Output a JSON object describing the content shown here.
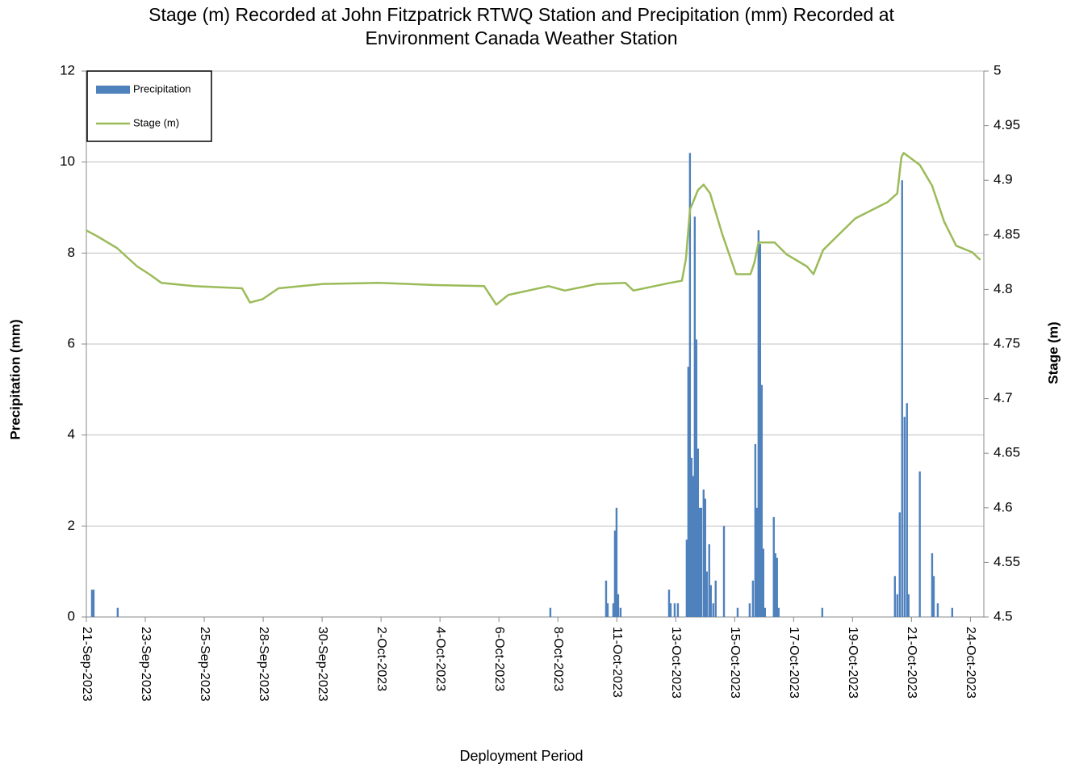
{
  "chart_data": {
    "type": "bar",
    "title": "Stage (m) Recorded at John Fitzpatrick RTWQ Station and Precipitation (mm) Recorded at Environment Canada Weather Station",
    "x_label": "Deployment Period",
    "y_label": "Precipitation (mm)",
    "y2_label": "Stage (m)",
    "xlim": [
      0,
      33.5
    ],
    "xticks": [
      {
        "value": 0,
        "label": "21-Sep-2023"
      },
      {
        "value": 2.2,
        "label": "23-Sep-2023"
      },
      {
        "value": 4.4,
        "label": "25-Sep-2023"
      },
      {
        "value": 6.6,
        "label": "28-Sep-2023"
      },
      {
        "value": 8.8,
        "label": "30-Sep-2023"
      },
      {
        "value": 11,
        "label": "2-Oct-2023"
      },
      {
        "value": 13.2,
        "label": "4-Oct-2023"
      },
      {
        "value": 15.4,
        "label": "6-Oct-2023"
      },
      {
        "value": 17.6,
        "label": "8-Oct-2023"
      },
      {
        "value": 19.8,
        "label": "11-Oct-2023"
      },
      {
        "value": 22,
        "label": "13-Oct-2023"
      },
      {
        "value": 24.2,
        "label": "15-Oct-2023"
      },
      {
        "value": 26.4,
        "label": "17-Oct-2023"
      },
      {
        "value": 28.6,
        "label": "19-Oct-2023"
      },
      {
        "value": 30.8,
        "label": "21-Oct-2023"
      },
      {
        "value": 33,
        "label": "24-Oct-2023"
      }
    ],
    "ylim": [
      0,
      12
    ],
    "yticks": [
      0,
      2,
      4,
      6,
      8,
      10,
      12
    ],
    "y2lim": [
      4.5,
      5
    ],
    "y2ticks": [
      4.5,
      4.55,
      4.6,
      4.65,
      4.7,
      4.75,
      4.8,
      4.85,
      4.9,
      4.95,
      5
    ],
    "grid": true,
    "legend": "upper left",
    "series": [
      {
        "name": "Precipitation",
        "type": "bar",
        "color": "#4f81bd",
        "x": [
          0.21,
          0.27,
          1.17,
          17.32,
          19.4,
          19.46,
          19.67,
          19.73,
          19.79,
          19.85,
          19.94,
          21.75,
          21.81,
          21.96,
          22.08,
          22.41,
          22.47,
          22.53,
          22.59,
          22.65,
          22.71,
          22.77,
          22.83,
          22.89,
          22.95,
          23.04,
          23.1,
          23.16,
          23.25,
          23.31,
          23.4,
          23.49,
          23.8,
          24.31,
          24.76,
          24.88,
          24.97,
          25.03,
          25.09,
          25.15,
          25.21,
          25.27,
          25.33,
          25.66,
          25.72,
          25.78,
          25.84,
          27.47,
          30.18,
          30.27,
          30.36,
          30.45,
          30.54,
          30.63,
          30.69,
          31.11,
          31.57,
          31.63,
          31.78,
          32.32
        ],
        "values": [
          0.6,
          0.6,
          0.2,
          0.2,
          0.8,
          0.3,
          0.3,
          1.9,
          2.4,
          0.5,
          0.2,
          0.6,
          0.3,
          0.3,
          0.3,
          1.7,
          5.5,
          10.2,
          3.5,
          3.1,
          8.8,
          6.1,
          3.7,
          2.4,
          2.4,
          2.8,
          2.6,
          1.0,
          1.6,
          0.7,
          0.3,
          0.8,
          2.0,
          0.2,
          0.3,
          0.8,
          3.8,
          2.4,
          8.5,
          8.2,
          5.1,
          1.5,
          0.2,
          2.2,
          1.4,
          1.3,
          0.2,
          0.2,
          0.9,
          0.5,
          2.3,
          9.6,
          4.4,
          4.7,
          0.5,
          3.2,
          1.4,
          0.9,
          0.3,
          0.2
        ]
      },
      {
        "name": "Stage (m)",
        "type": "line",
        "axis": "y2",
        "color": "#9bbb59",
        "x": [
          0,
          0.39,
          1.14,
          1.9,
          2.35,
          2.8,
          4.01,
          5.81,
          6.11,
          6.57,
          7.17,
          8.83,
          10.93,
          13.04,
          14.85,
          15.3,
          15.75,
          17.26,
          17.86,
          19.07,
          20.12,
          20.42,
          21.78,
          22.23,
          22.38,
          22.53,
          22.83,
          23.04,
          23.28,
          23.73,
          24.25,
          24.79,
          24.94,
          25.09,
          25.69,
          26.14,
          26.9,
          27.14,
          27.5,
          27.95,
          28.7,
          29.91,
          30.27,
          30.42,
          30.51,
          31.11,
          31.57,
          32.02,
          32.47,
          33.07,
          33.37
        ],
        "values": [
          4.854,
          4.849,
          4.838,
          4.821,
          4.814,
          4.806,
          4.803,
          4.801,
          4.788,
          4.791,
          4.801,
          4.805,
          4.806,
          4.804,
          4.803,
          4.786,
          4.795,
          4.803,
          4.799,
          4.805,
          4.806,
          4.799,
          4.806,
          4.808,
          4.828,
          4.873,
          4.891,
          4.896,
          4.888,
          4.851,
          4.814,
          4.814,
          4.825,
          4.843,
          4.843,
          4.832,
          4.821,
          4.814,
          4.836,
          4.847,
          4.865,
          4.88,
          4.888,
          4.921,
          4.925,
          4.914,
          4.895,
          4.862,
          4.84,
          4.834,
          4.827
        ]
      }
    ]
  }
}
